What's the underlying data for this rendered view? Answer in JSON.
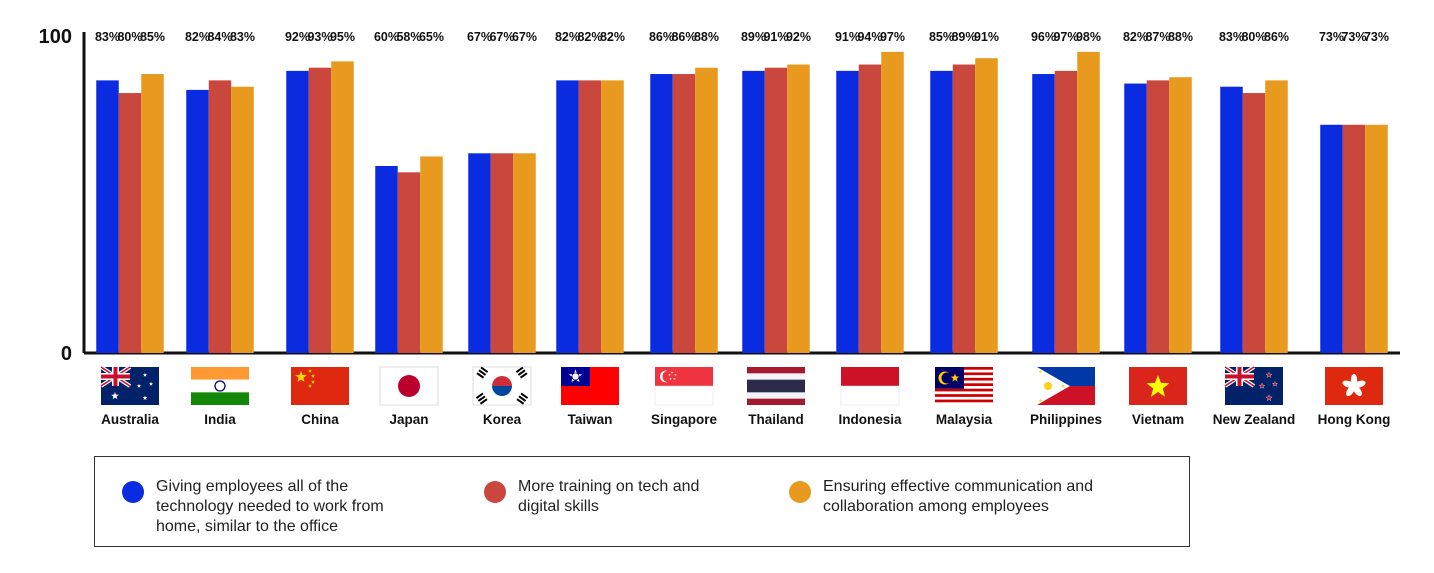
{
  "chart_data": {
    "type": "bar",
    "title": "",
    "xlabel": "",
    "ylabel": "",
    "ylim": [
      0,
      100
    ],
    "y_tick_labels": [
      "0",
      "100"
    ],
    "categories": [
      "Australia",
      "India",
      "China",
      "Japan",
      "Korea",
      "Taiwan",
      "Singapore",
      "Thailand",
      "Indonesia",
      "Malaysia",
      "Philippines",
      "Vietnam",
      "New Zealand",
      "Hong Kong"
    ],
    "series": [
      {
        "name": "Giving employees all of the technology needed to work from home, similar to the office",
        "color": "#0a2be0",
        "values": [
          83,
          82,
          92,
          60,
          67,
          82,
          86,
          89,
          91,
          85,
          96,
          82,
          83,
          73
        ]
      },
      {
        "name": "More training on tech and digital skills",
        "color": "#c9473c",
        "values": [
          80,
          84,
          93,
          58,
          67,
          82,
          86,
          91,
          94,
          89,
          97,
          87,
          80,
          73
        ]
      },
      {
        "name": "Ensuring effective communication and collaboration among employees",
        "color": "#e89a1e",
        "values": [
          85,
          83,
          95,
          65,
          67,
          82,
          88,
          92,
          97,
          91,
          98,
          88,
          86,
          73
        ]
      }
    ],
    "bar_heights": [
      [
        86,
        83,
        89,
        59,
        63,
        86,
        88,
        89,
        89,
        89,
        88,
        85,
        84,
        72
      ],
      [
        82,
        86,
        90,
        57,
        63,
        86,
        88,
        90,
        91,
        91,
        89,
        86,
        82,
        72
      ],
      [
        88,
        84,
        92,
        62,
        63,
        86,
        90,
        91,
        95,
        93,
        95,
        87,
        86,
        72
      ]
    ],
    "grid": false,
    "legend_position": "bottom",
    "flag_icons": [
      "australia-flag-icon",
      "india-flag-icon",
      "china-flag-icon",
      "japan-flag-icon",
      "korea-flag-icon",
      "taiwan-flag-icon",
      "singapore-flag-icon",
      "thailand-flag-icon",
      "indonesia-flag-icon",
      "malaysia-flag-icon",
      "philippines-flag-icon",
      "vietnam-flag-icon",
      "new-zealand-flag-icon",
      "hong-kong-flag-icon"
    ]
  },
  "legend": {
    "items": [
      {
        "label": "Giving employees all of the technology needed to work from home, similar to the office",
        "color": "#0a2be0"
      },
      {
        "label": "More training on tech and digital skills",
        "color": "#c9473c"
      },
      {
        "label": "Ensuring effective communication and collaboration among employees",
        "color": "#e89a1e"
      }
    ]
  }
}
